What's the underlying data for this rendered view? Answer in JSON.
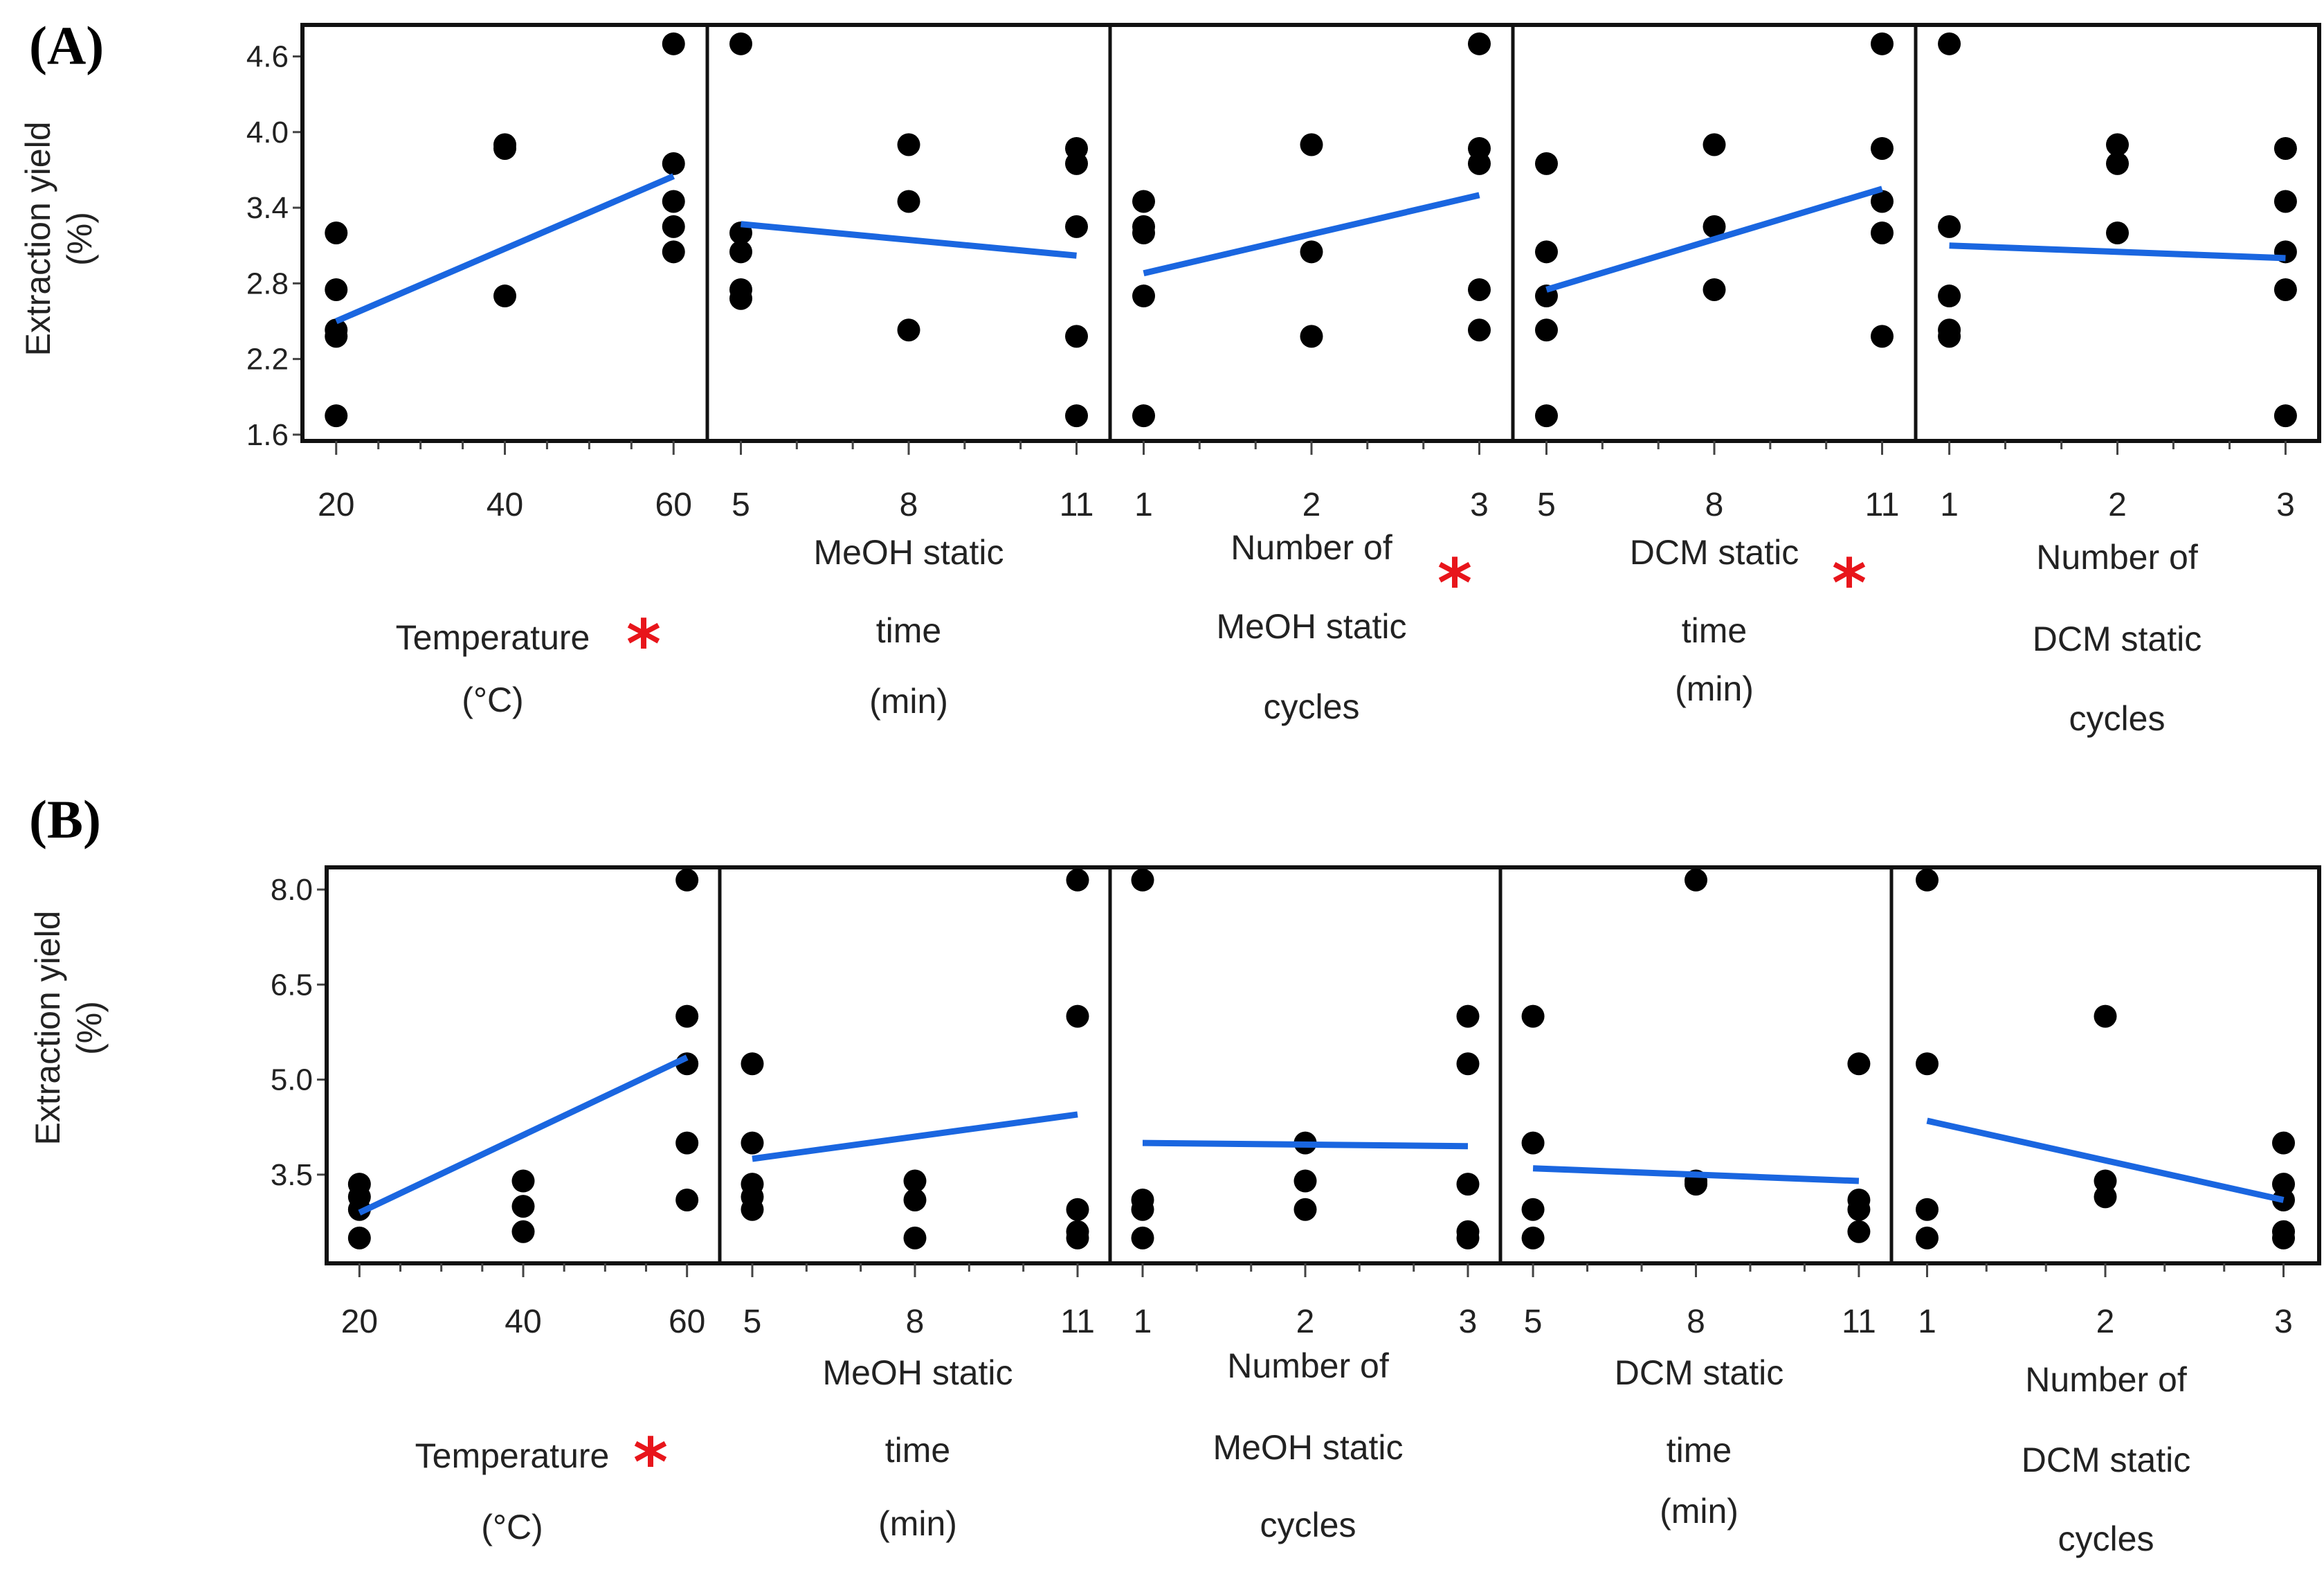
{
  "chart_data": [
    {
      "type": "scatter",
      "panel_label": "(A)",
      "ylabel": [
        "Extraction yield",
        "(%)"
      ],
      "ylim": [
        1.55,
        4.85
      ],
      "yticks": [
        1.6,
        2.2,
        2.8,
        3.4,
        4.0,
        4.6
      ],
      "ytick_labels": [
        "1.6",
        "2.2",
        "2.8",
        "3.4",
        "4.0",
        "4.6"
      ],
      "subplots": [
        {
          "xlabel_lines": [
            "Temperature",
            "(°C)"
          ],
          "significant": true,
          "xlim": [
            16,
            64
          ],
          "xticks": [
            20,
            40,
            60
          ],
          "xtick_labels": [
            "20",
            "40",
            "60"
          ],
          "minor_xticks": [
            25,
            30,
            35,
            45,
            50,
            55
          ],
          "points": [
            [
              20,
              3.2
            ],
            [
              20,
              2.75
            ],
            [
              20,
              2.43
            ],
            [
              20,
              2.38
            ],
            [
              20,
              1.75
            ],
            [
              40,
              3.9
            ],
            [
              40,
              3.87
            ],
            [
              40,
              2.7
            ],
            [
              60,
              4.7
            ],
            [
              60,
              3.75
            ],
            [
              60,
              3.45
            ],
            [
              60,
              3.25
            ],
            [
              60,
              3.05
            ]
          ],
          "fit": [
            [
              20,
              2.5
            ],
            [
              60,
              3.65
            ]
          ]
        },
        {
          "xlabel_lines": [
            "MeOH static",
            "time",
            "(min)"
          ],
          "significant": false,
          "xlim": [
            4.4,
            11.6
          ],
          "xticks": [
            5,
            8,
            11
          ],
          "xtick_labels": [
            "5",
            "8",
            "11"
          ],
          "minor_xticks": [
            6,
            7,
            9,
            10
          ],
          "points": [
            [
              5,
              4.7
            ],
            [
              5,
              3.2
            ],
            [
              5,
              3.05
            ],
            [
              5,
              2.75
            ],
            [
              5,
              2.68
            ],
            [
              8,
              3.9
            ],
            [
              8,
              3.45
            ],
            [
              8,
              2.43
            ],
            [
              11,
              3.87
            ],
            [
              11,
              3.75
            ],
            [
              11,
              3.25
            ],
            [
              11,
              2.38
            ],
            [
              11,
              1.75
            ]
          ],
          "fit": [
            [
              5,
              3.27
            ],
            [
              11,
              3.02
            ]
          ]
        },
        {
          "xlabel_lines": [
            "Number of",
            "MeOH static",
            "cycles"
          ],
          "significant": true,
          "xlim": [
            0.8,
            3.2
          ],
          "xticks": [
            1,
            2,
            3
          ],
          "xtick_labels": [
            "1",
            "2",
            "3"
          ],
          "minor_xticks": [
            1.333,
            1.667,
            2.333,
            2.667
          ],
          "points": [
            [
              1,
              3.45
            ],
            [
              1,
              3.25
            ],
            [
              1,
              3.2
            ],
            [
              1,
              2.7
            ],
            [
              1,
              1.75
            ],
            [
              2,
              3.9
            ],
            [
              2,
              3.05
            ],
            [
              2,
              2.38
            ],
            [
              3,
              4.7
            ],
            [
              3,
              3.87
            ],
            [
              3,
              3.75
            ],
            [
              3,
              2.75
            ],
            [
              3,
              2.43
            ]
          ],
          "fit": [
            [
              1,
              2.88
            ],
            [
              3,
              3.5
            ]
          ]
        },
        {
          "xlabel_lines": [
            "DCM static",
            "time",
            "(min)"
          ],
          "significant": true,
          "xlim": [
            4.4,
            11.6
          ],
          "xticks": [
            5,
            8,
            11
          ],
          "xtick_labels": [
            "5",
            "8",
            "11"
          ],
          "minor_xticks": [
            6,
            7,
            9,
            10
          ],
          "points": [
            [
              5,
              3.75
            ],
            [
              5,
              3.05
            ],
            [
              5,
              2.7
            ],
            [
              5,
              2.43
            ],
            [
              5,
              1.75
            ],
            [
              8,
              3.9
            ],
            [
              8,
              3.25
            ],
            [
              8,
              2.75
            ],
            [
              11,
              4.7
            ],
            [
              11,
              3.87
            ],
            [
              11,
              3.45
            ],
            [
              11,
              3.2
            ],
            [
              11,
              2.38
            ]
          ],
          "fit": [
            [
              5,
              2.75
            ],
            [
              11,
              3.55
            ]
          ]
        },
        {
          "xlabel_lines": [
            "Number of",
            "DCM static",
            "cycles"
          ],
          "significant": false,
          "xlim": [
            0.8,
            3.2
          ],
          "xticks": [
            1,
            2,
            3
          ],
          "xtick_labels": [
            "1",
            "2",
            "3"
          ],
          "minor_xticks": [
            1.333,
            1.667,
            2.333,
            2.667
          ],
          "points": [
            [
              1,
              4.7
            ],
            [
              1,
              3.25
            ],
            [
              1,
              2.7
            ],
            [
              1,
              2.43
            ],
            [
              1,
              2.38
            ],
            [
              2,
              3.9
            ],
            [
              2,
              3.75
            ],
            [
              2,
              3.2
            ],
            [
              3,
              3.87
            ],
            [
              3,
              3.45
            ],
            [
              3,
              3.05
            ],
            [
              3,
              2.75
            ],
            [
              3,
              1.75
            ]
          ],
          "fit": [
            [
              1,
              3.1
            ],
            [
              3,
              3.0
            ]
          ]
        }
      ]
    },
    {
      "type": "scatter",
      "panel_label": "(B)",
      "ylabel": [
        "Extraction yield",
        "(%)"
      ],
      "ylim": [
        2.1,
        8.35
      ],
      "yticks": [
        3.5,
        5.0,
        6.5,
        8.0
      ],
      "ytick_labels": [
        "3.5",
        "5.0",
        "6.5",
        "8.0"
      ],
      "subplots": [
        {
          "xlabel_lines": [
            "Temperature",
            "(°C)"
          ],
          "significant": true,
          "xlim": [
            16,
            64
          ],
          "xticks": [
            20,
            40,
            60
          ],
          "xtick_labels": [
            "20",
            "40",
            "60"
          ],
          "minor_xticks": [
            25,
            30,
            35,
            45,
            50,
            55
          ],
          "points": [
            [
              20,
              3.35
            ],
            [
              20,
              3.15
            ],
            [
              20,
              2.95
            ],
            [
              20,
              2.5
            ],
            [
              40,
              3.4
            ],
            [
              40,
              3.0
            ],
            [
              40,
              2.6
            ],
            [
              60,
              8.15
            ],
            [
              60,
              6.0
            ],
            [
              60,
              5.25
            ],
            [
              60,
              4.0
            ],
            [
              60,
              3.1
            ]
          ],
          "fit": [
            [
              20,
              2.9
            ],
            [
              60,
              5.35
            ]
          ]
        },
        {
          "xlabel_lines": [
            "MeOH static",
            "time",
            "(min)"
          ],
          "significant": false,
          "xlim": [
            4.4,
            11.6
          ],
          "xticks": [
            5,
            8,
            11
          ],
          "xtick_labels": [
            "5",
            "8",
            "11"
          ],
          "minor_xticks": [
            6,
            7,
            9,
            10
          ],
          "points": [
            [
              5,
              5.25
            ],
            [
              5,
              4.0
            ],
            [
              5,
              3.35
            ],
            [
              5,
              3.15
            ],
            [
              5,
              2.95
            ],
            [
              8,
              3.4
            ],
            [
              8,
              3.1
            ],
            [
              8,
              2.5
            ],
            [
              11,
              8.15
            ],
            [
              11,
              6.0
            ],
            [
              11,
              2.95
            ],
            [
              11,
              2.6
            ],
            [
              11,
              2.5
            ]
          ],
          "fit": [
            [
              5,
              3.75
            ],
            [
              11,
              4.45
            ]
          ]
        },
        {
          "xlabel_lines": [
            "Number of",
            "MeOH static",
            "cycles"
          ],
          "significant": false,
          "xlim": [
            0.8,
            3.2
          ],
          "xticks": [
            1,
            2,
            3
          ],
          "xtick_labels": [
            "1",
            "2",
            "3"
          ],
          "minor_xticks": [
            1.333,
            1.667,
            2.333,
            2.667
          ],
          "points": [
            [
              1,
              8.15
            ],
            [
              1,
              3.1
            ],
            [
              1,
              2.95
            ],
            [
              1,
              2.5
            ],
            [
              2,
              4.0
            ],
            [
              2,
              3.4
            ],
            [
              2,
              2.95
            ],
            [
              3,
              6.0
            ],
            [
              3,
              5.25
            ],
            [
              3,
              3.35
            ],
            [
              3,
              2.6
            ],
            [
              3,
              2.5
            ]
          ],
          "fit": [
            [
              1,
              4.0
            ],
            [
              3,
              3.95
            ]
          ]
        },
        {
          "xlabel_lines": [
            "DCM static",
            "time",
            "(min)"
          ],
          "significant": false,
          "xlim": [
            4.4,
            11.6
          ],
          "xticks": [
            5,
            8,
            11
          ],
          "xtick_labels": [
            "5",
            "8",
            "11"
          ],
          "minor_xticks": [
            6,
            7,
            9,
            10
          ],
          "points": [
            [
              5,
              6.0
            ],
            [
              5,
              4.0
            ],
            [
              5,
              2.95
            ],
            [
              5,
              2.5
            ],
            [
              8,
              8.15
            ],
            [
              8,
              3.4
            ],
            [
              8,
              3.35
            ],
            [
              11,
              5.25
            ],
            [
              11,
              3.1
            ],
            [
              11,
              2.95
            ],
            [
              11,
              2.6
            ]
          ],
          "fit": [
            [
              5,
              3.6
            ],
            [
              11,
              3.4
            ]
          ]
        },
        {
          "xlabel_lines": [
            "Number of",
            "DCM static",
            "cycles"
          ],
          "significant": false,
          "xlim": [
            0.8,
            3.2
          ],
          "xticks": [
            1,
            2,
            3
          ],
          "xtick_labels": [
            "1",
            "2",
            "3"
          ],
          "minor_xticks": [
            1.333,
            1.667,
            2.333,
            2.667
          ],
          "points": [
            [
              1,
              8.15
            ],
            [
              1,
              5.25
            ],
            [
              1,
              2.95
            ],
            [
              1,
              2.5
            ],
            [
              2,
              6.0
            ],
            [
              2,
              3.4
            ],
            [
              2,
              3.15
            ],
            [
              3,
              4.0
            ],
            [
              3,
              3.35
            ],
            [
              3,
              3.1
            ],
            [
              3,
              2.6
            ],
            [
              3,
              2.5
            ]
          ],
          "fit": [
            [
              1,
              4.35
            ],
            [
              3,
              3.1
            ]
          ]
        }
      ]
    }
  ]
}
